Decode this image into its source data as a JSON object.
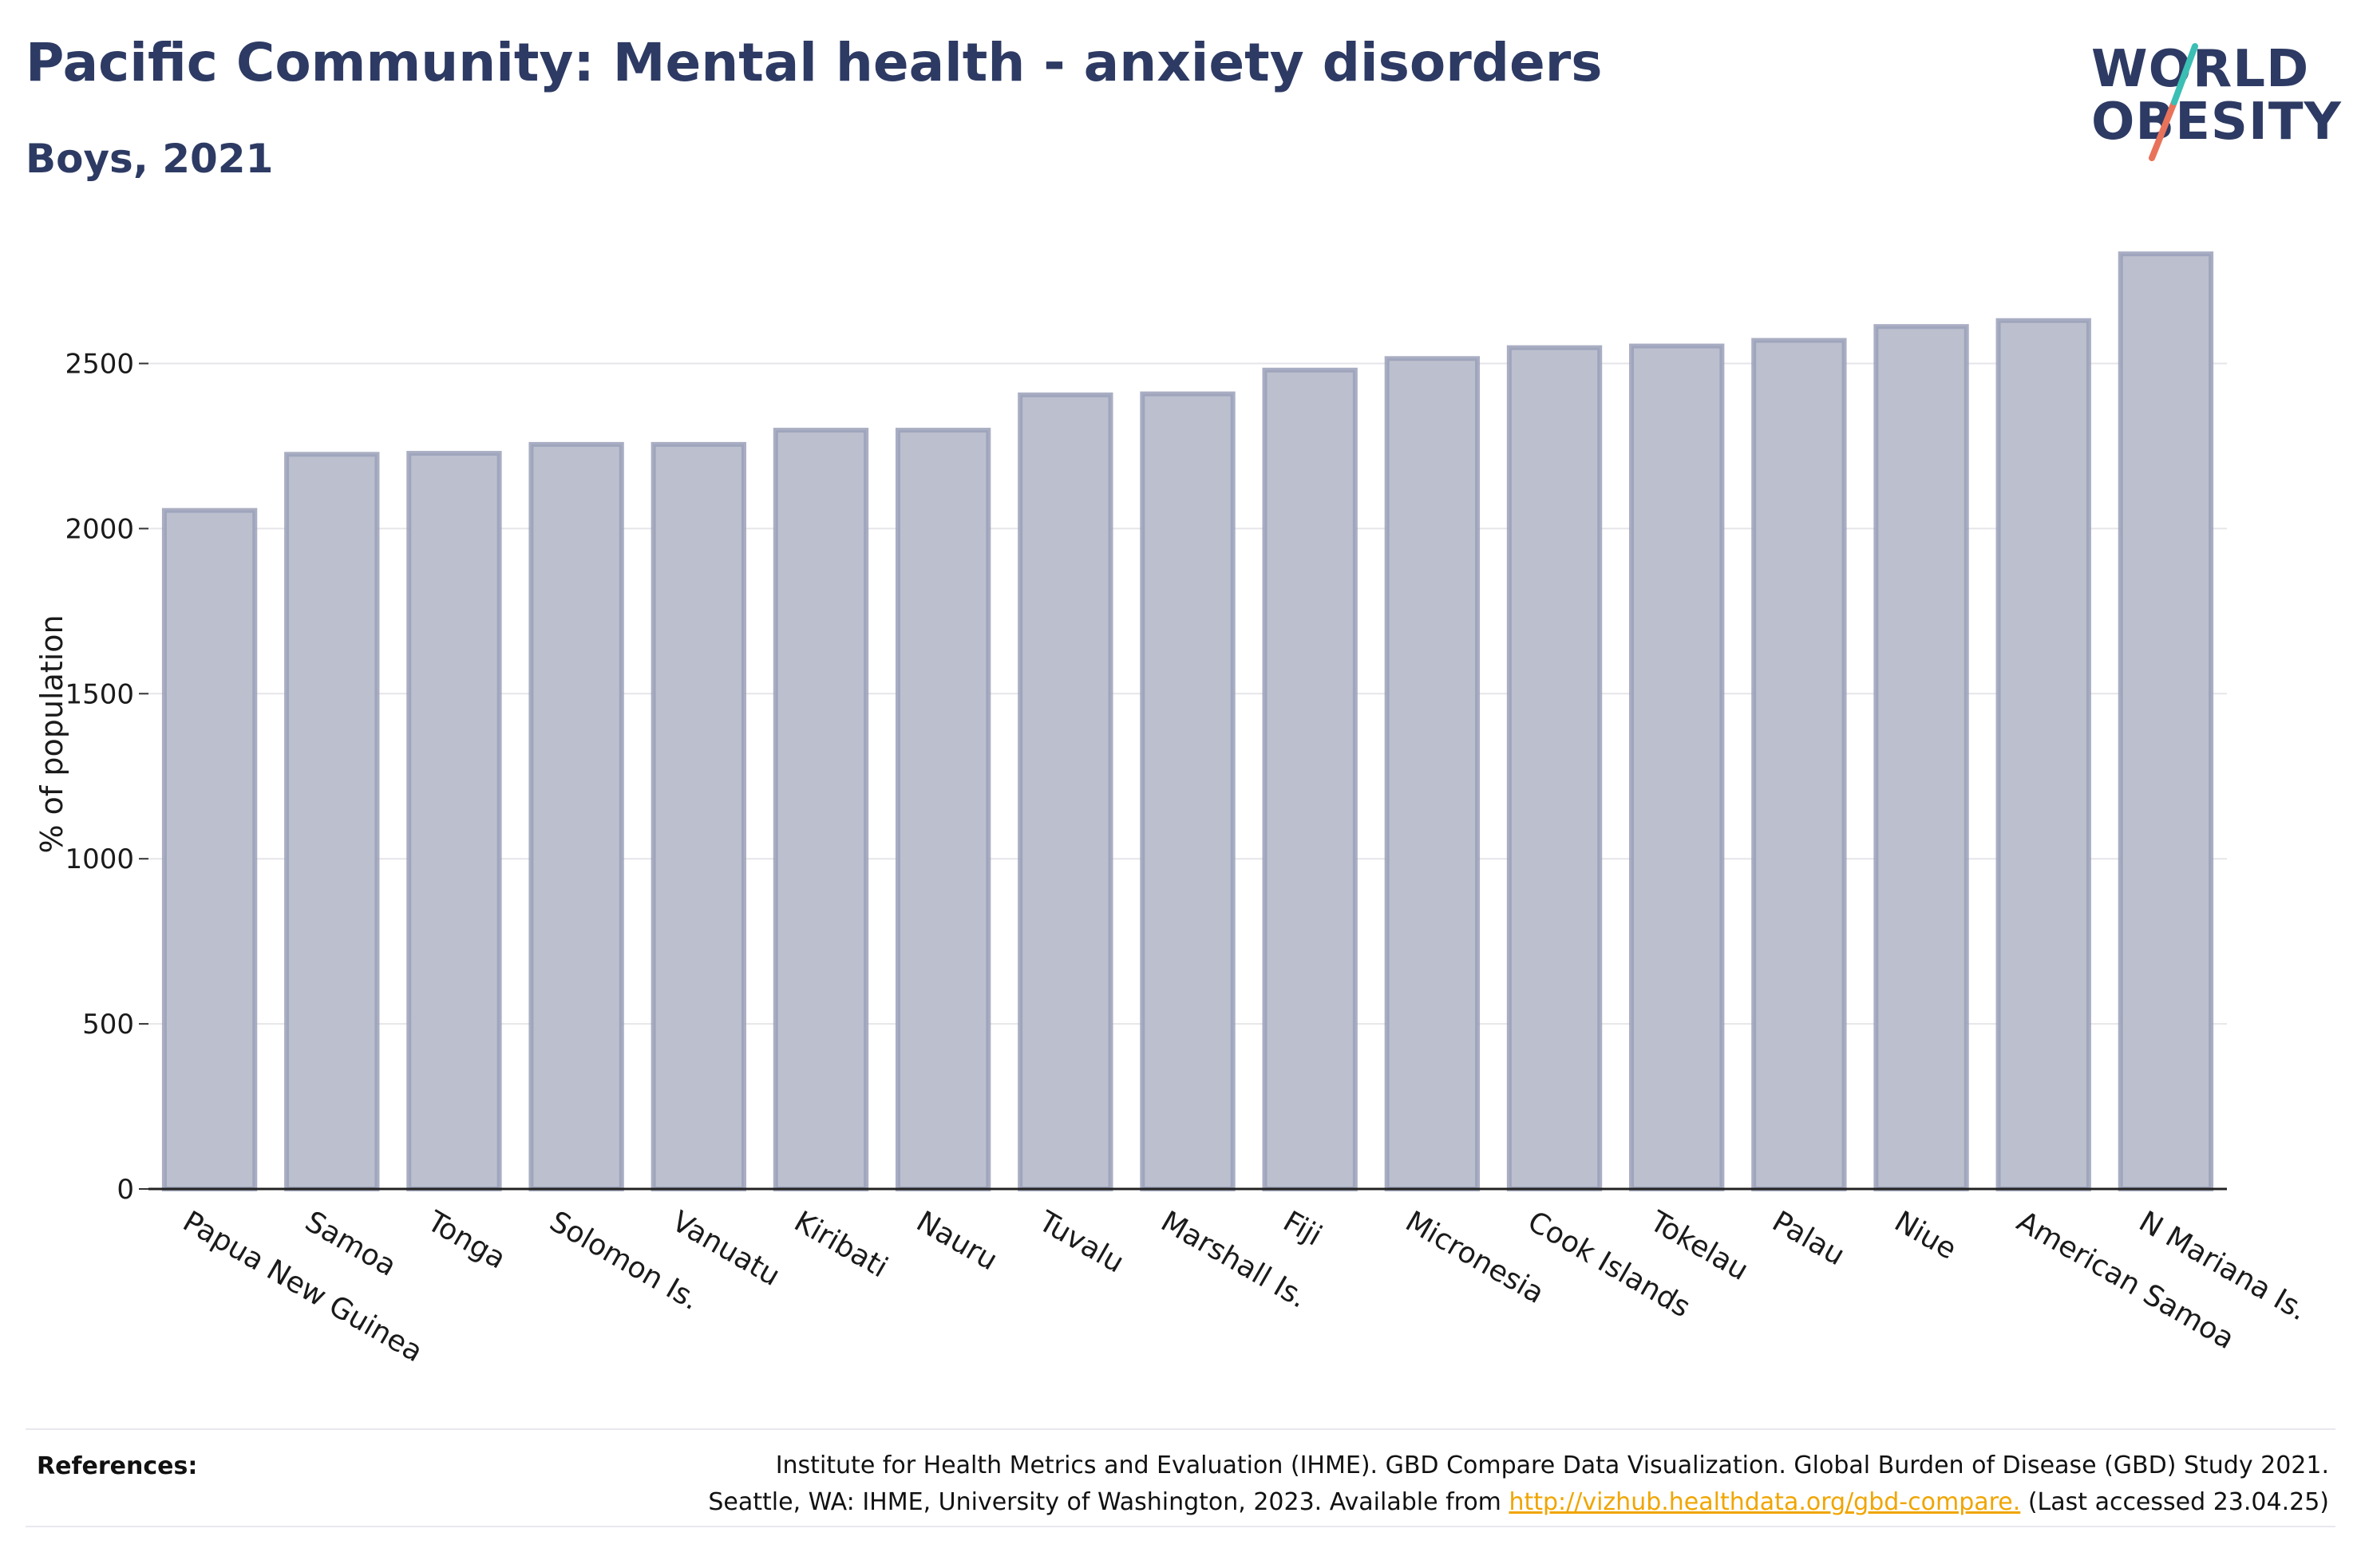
{
  "header": {
    "title": "Pacific Community: Mental health - anxiety disorders",
    "subtitle": "Boys, 2021"
  },
  "logo": {
    "line1": "WORLD",
    "line2": "OBESITY",
    "slash_colors": [
      "#3bbfb4",
      "#e8735a"
    ]
  },
  "chart_data": {
    "type": "bar",
    "categories": [
      "Papua New Guinea",
      "Samoa",
      "Tonga",
      "Solomon Is.",
      "Vanuatu",
      "Kiribati",
      "Nauru",
      "Tuvalu",
      "Marshall Is.",
      "Fiji",
      "Micronesia",
      "Cook Islands",
      "Tokelau",
      "Palau",
      "Niue",
      "American Samoa",
      "N Mariana Is."
    ],
    "values": [
      2055,
      2225,
      2228,
      2255,
      2255,
      2298,
      2298,
      2405,
      2408,
      2480,
      2515,
      2548,
      2553,
      2570,
      2612,
      2630,
      2832
    ],
    "xlabel": "",
    "ylabel": "% of population",
    "ylim": [
      0,
      2900
    ],
    "yticks": [
      0,
      500,
      1000,
      1500,
      2000,
      2500
    ],
    "grid": true,
    "bar_fill": "#bcc0ce",
    "bar_stroke": "#9aa0b8"
  },
  "footer": {
    "references_label": "References:",
    "line1": "Institute for Health Metrics and Evaluation (IHME). GBD Compare Data Visualization. Global Burden of Disease (GBD) Study 2021.",
    "line2_prefix": "Seattle, WA: IHME, University of Washington, 2023. Available from ",
    "link": "http://vizhub.healthdata.org/gbd-compare.",
    "line2_suffix": " (Last accessed 23.04.25)",
    "link_color": "#f0a500"
  }
}
